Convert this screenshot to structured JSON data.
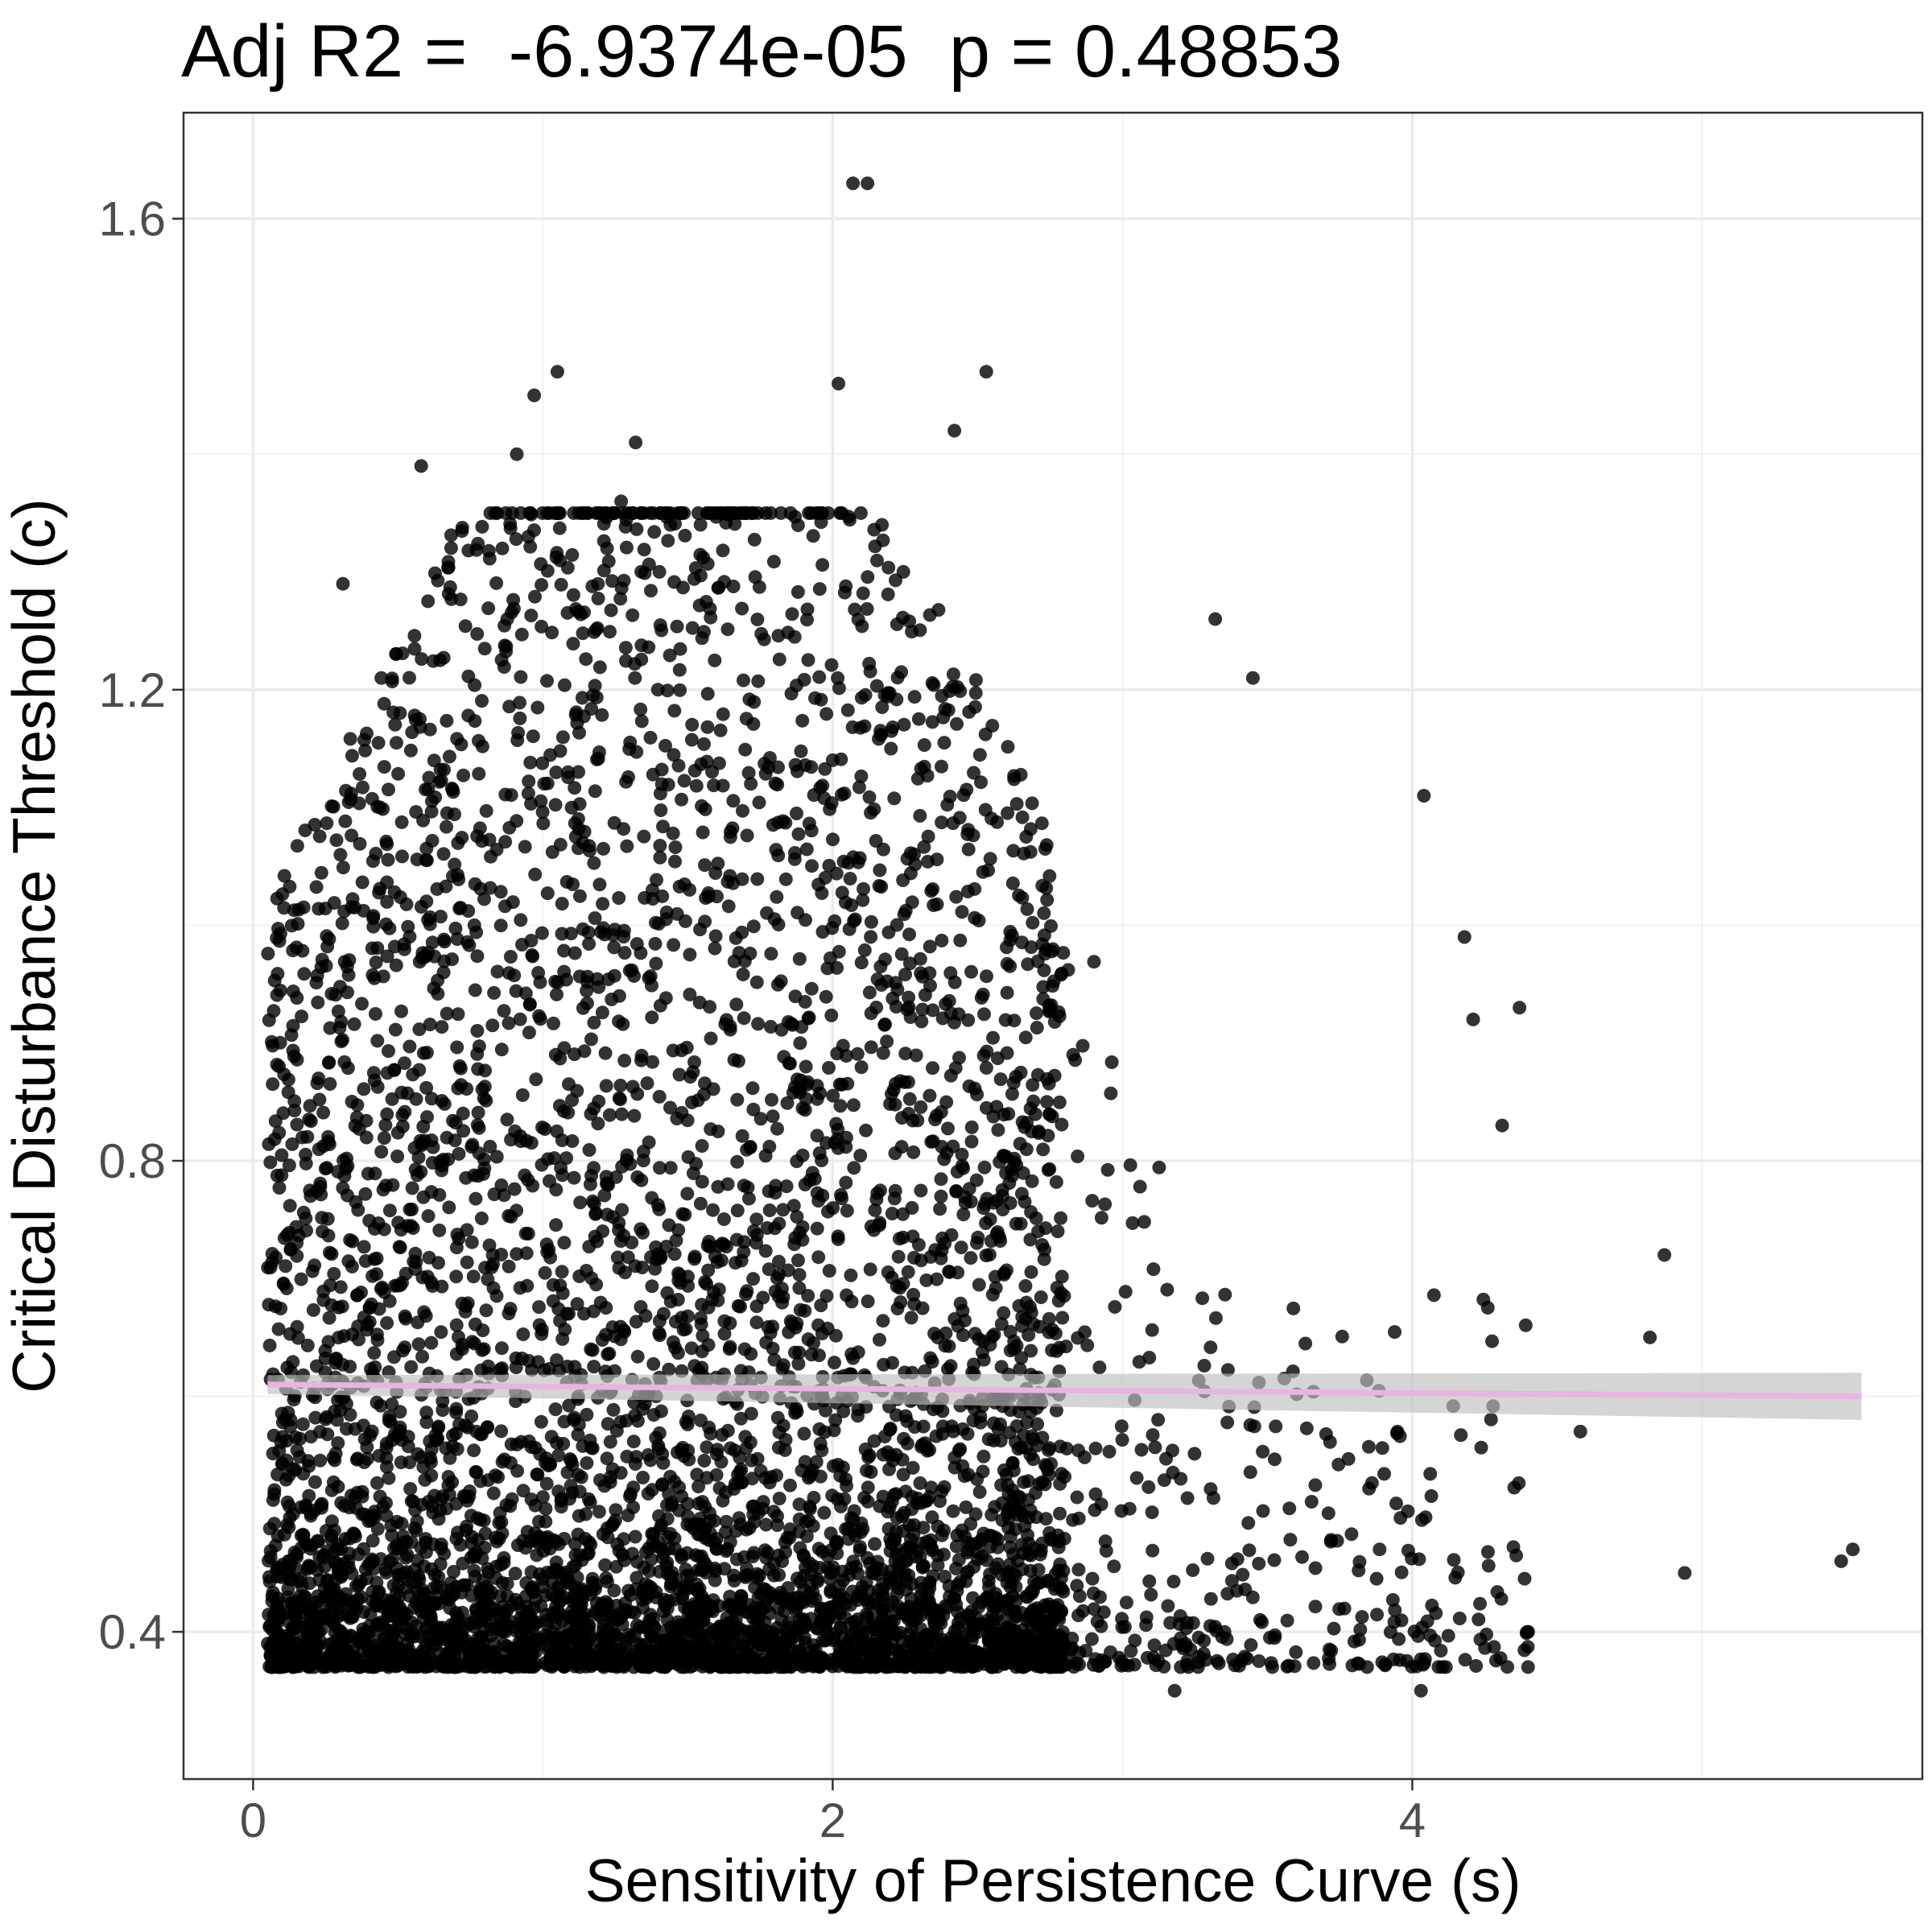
{
  "chart_data": {
    "type": "scatter",
    "title": "Adj R2 =  -6.9374e-05  p = 0.48853",
    "xlabel": "Sensitivity of Persistence Curve (s)",
    "ylabel": "Critical Disturbance Threshold (c)",
    "xlim": [
      -0.24,
      5.76
    ],
    "ylim": [
      0.275,
      1.69
    ],
    "x_ticks": [
      0,
      2,
      4
    ],
    "x_tick_labels": [
      "0",
      "2",
      "4"
    ],
    "y_ticks": [
      0.4,
      0.8,
      1.2,
      1.6
    ],
    "y_tick_labels": [
      "0.4",
      "0.8",
      "1.2",
      "1.6"
    ],
    "x_minor_ticks": [
      1,
      3,
      5
    ],
    "y_minor_ticks": [
      0.6,
      1.0,
      1.4
    ],
    "grid": true,
    "point_color": "#000000",
    "point_alpha": 0.8,
    "fit_line": {
      "method": "linear",
      "color": "#e8b4e0",
      "band_color": "#bfbfbf",
      "points": [
        [
          0.05,
          0.61
        ],
        [
          5.55,
          0.6
        ]
      ],
      "band_half_width": [
        0.008,
        0.02
      ]
    },
    "notable_points": [
      {
        "x": 2.07,
        "y": 1.63
      },
      {
        "x": 2.12,
        "y": 1.63
      },
      {
        "x": 1.05,
        "y": 1.47
      },
      {
        "x": 0.97,
        "y": 1.45
      },
      {
        "x": 2.02,
        "y": 1.46
      },
      {
        "x": 2.53,
        "y": 1.47
      },
      {
        "x": 2.42,
        "y": 1.42
      },
      {
        "x": 0.91,
        "y": 1.4
      },
      {
        "x": 1.32,
        "y": 1.41
      },
      {
        "x": 0.58,
        "y": 1.39
      },
      {
        "x": 1.27,
        "y": 1.36
      },
      {
        "x": 0.95,
        "y": 1.33
      },
      {
        "x": 2.17,
        "y": 1.34
      },
      {
        "x": 1.44,
        "y": 1.34
      },
      {
        "x": 0.86,
        "y": 1.32
      },
      {
        "x": 0.31,
        "y": 1.29
      },
      {
        "x": 3.32,
        "y": 1.26
      },
      {
        "x": 3.45,
        "y": 1.21
      },
      {
        "x": 4.04,
        "y": 1.11
      },
      {
        "x": 4.18,
        "y": 0.99
      },
      {
        "x": 4.37,
        "y": 0.93
      },
      {
        "x": 4.21,
        "y": 0.92
      },
      {
        "x": 4.87,
        "y": 0.72
      },
      {
        "x": 4.82,
        "y": 0.65
      },
      {
        "x": 4.58,
        "y": 0.57
      },
      {
        "x": 5.48,
        "y": 0.46
      },
      {
        "x": 5.52,
        "y": 0.47
      },
      {
        "x": 4.94,
        "y": 0.45
      },
      {
        "x": 4.31,
        "y": 0.83
      },
      {
        "x": 4.4,
        "y": 0.4
      },
      {
        "x": 4.03,
        "y": 0.35
      },
      {
        "x": 3.18,
        "y": 0.35
      }
    ],
    "n_points": 6000
  }
}
